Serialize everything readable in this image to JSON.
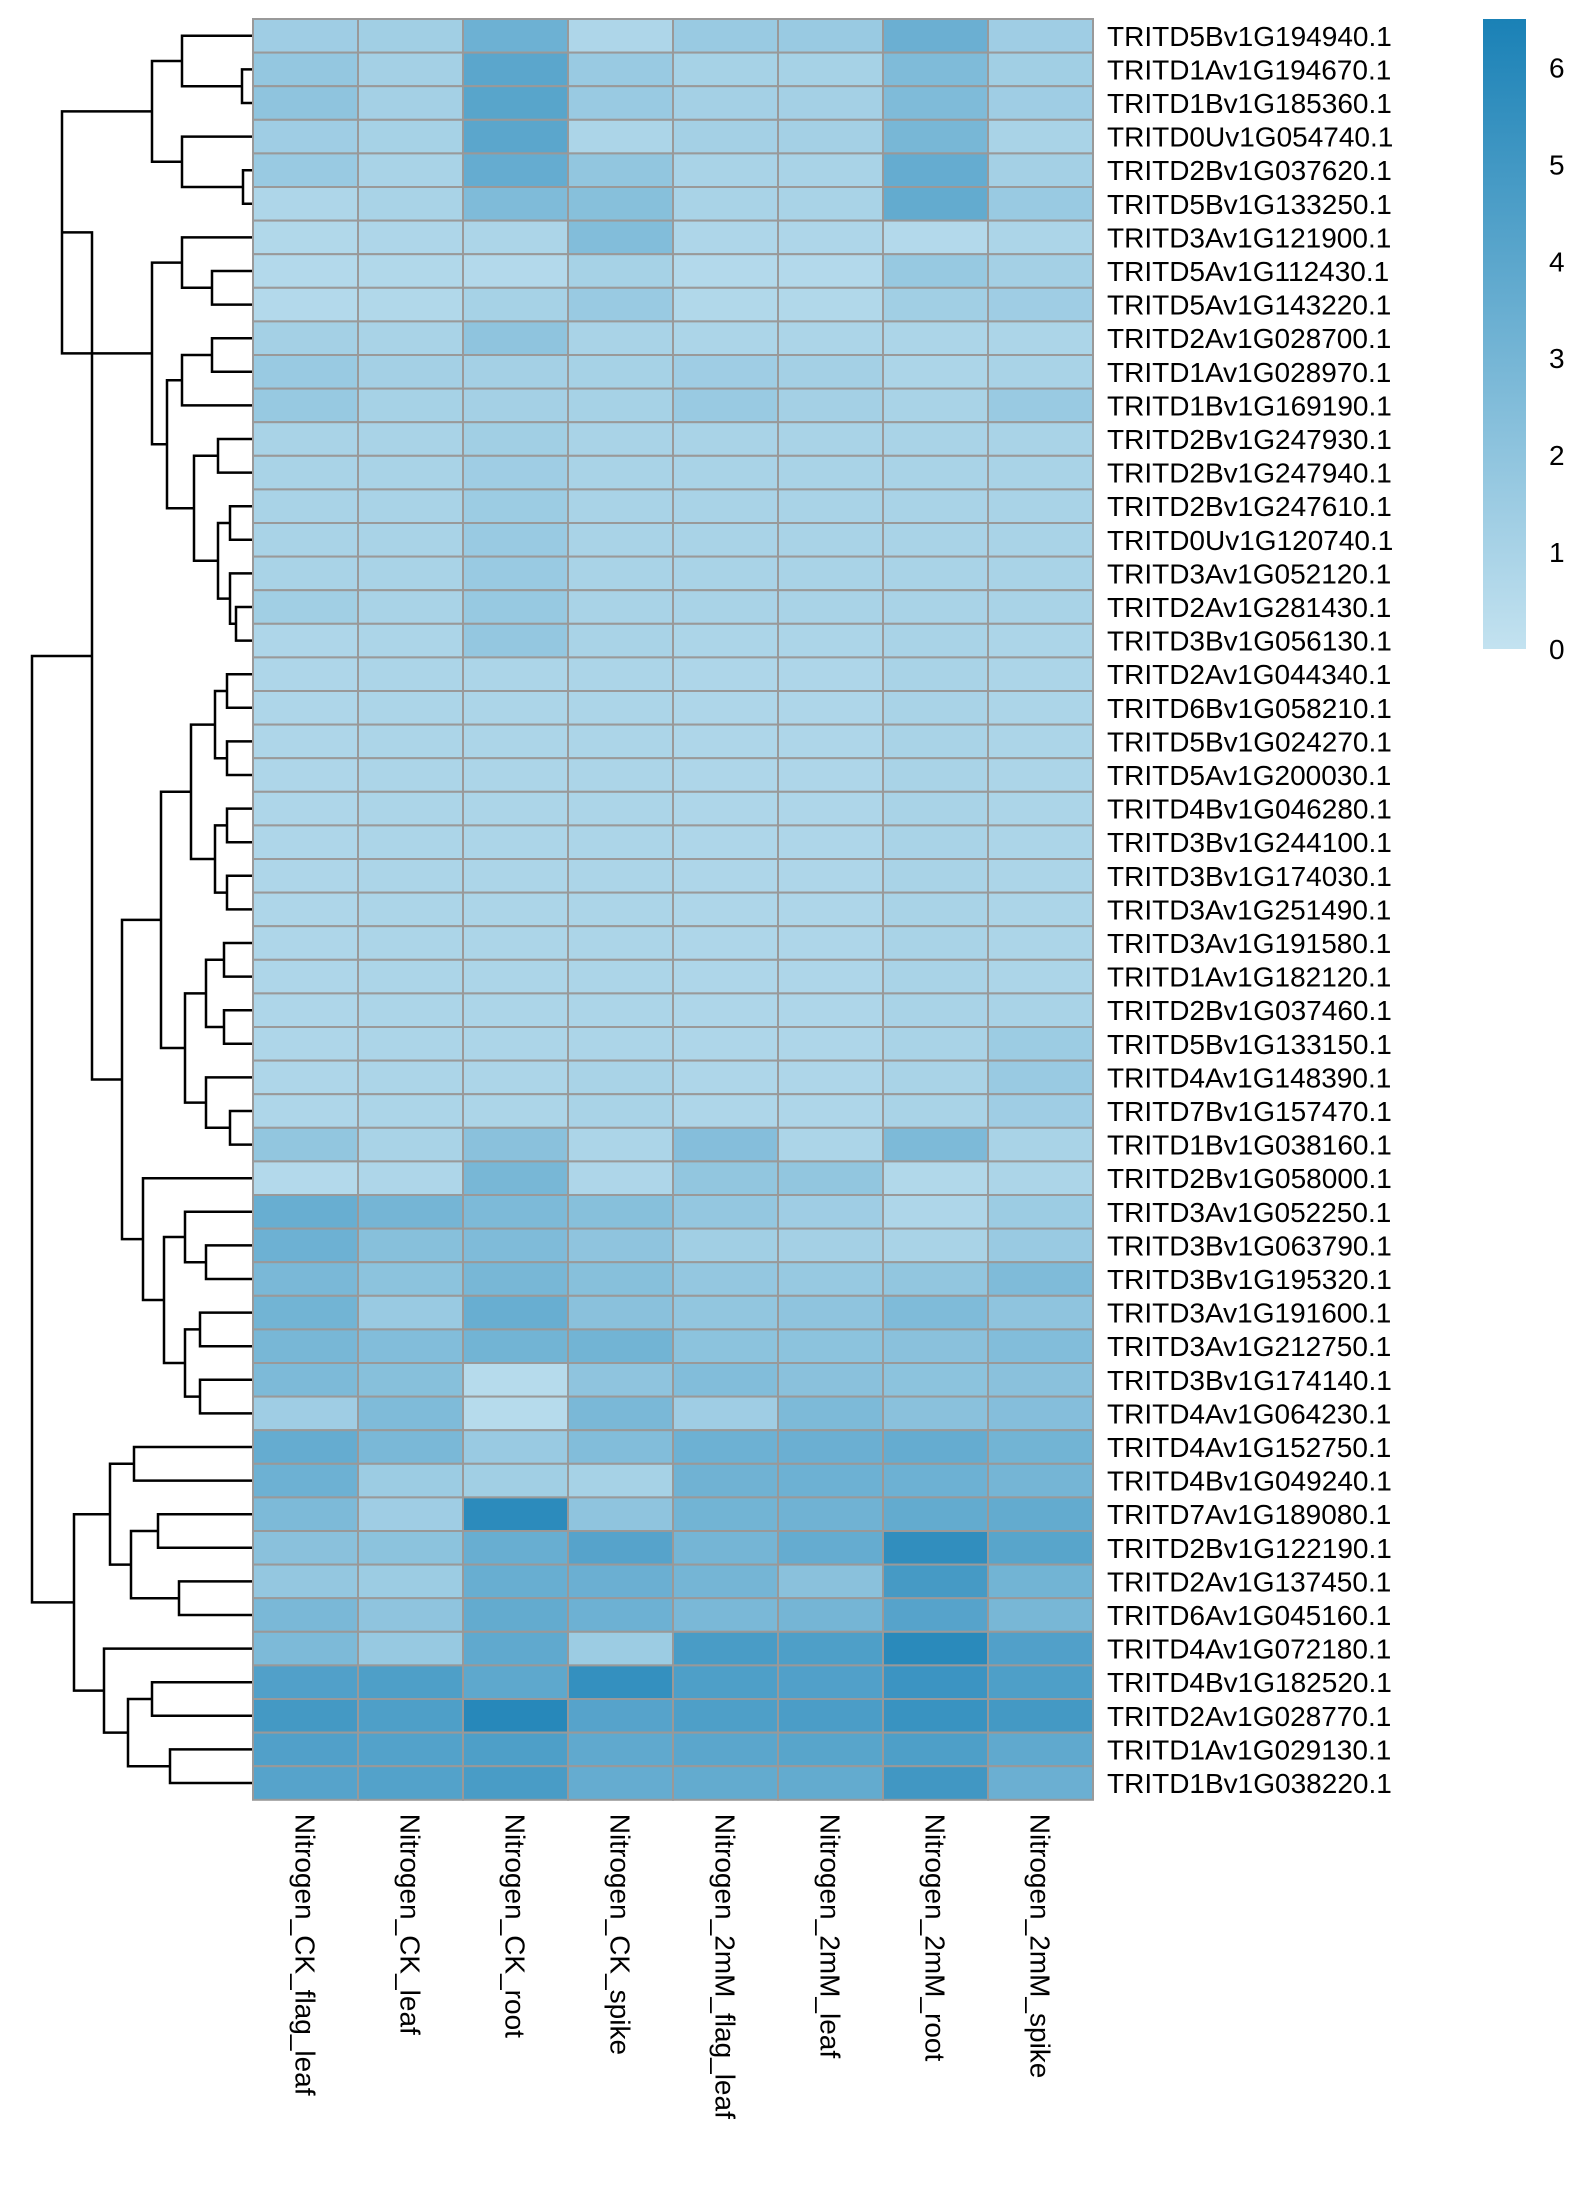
{
  "chart_data": {
    "type": "heatmap",
    "title": "",
    "columns": [
      "Nitrogen_CK_flag_leaf",
      "Nitrogen_CK_leaf",
      "Nitrogen_CK_root",
      "Nitrogen_CK_spike",
      "Nitrogen_2mM_flag_leaf",
      "Nitrogen_2mM_leaf",
      "Nitrogen_2mM_root",
      "Nitrogen_2mM_spike"
    ],
    "rows": [
      "TRITD5Bv1G194940.1",
      "TRITD1Av1G194670.1",
      "TRITD1Bv1G185360.1",
      "TRITD0Uv1G054740.1",
      "TRITD2Bv1G037620.1",
      "TRITD5Bv1G133250.1",
      "TRITD3Av1G121900.1",
      "TRITD5Av1G112430.1",
      "TRITD5Av1G143220.1",
      "TRITD2Av1G028700.1",
      "TRITD1Av1G028970.1",
      "TRITD1Bv1G169190.1",
      "TRITD2Bv1G247930.1",
      "TRITD2Bv1G247940.1",
      "TRITD2Bv1G247610.1",
      "TRITD0Uv1G120740.1",
      "TRITD3Av1G052120.1",
      "TRITD2Av1G281430.1",
      "TRITD3Bv1G056130.1",
      "TRITD2Av1G044340.1",
      "TRITD6Bv1G058210.1",
      "TRITD5Bv1G024270.1",
      "TRITD5Av1G200030.1",
      "TRITD4Bv1G046280.1",
      "TRITD3Bv1G244100.1",
      "TRITD3Bv1G174030.1",
      "TRITD3Av1G251490.1",
      "TRITD3Av1G191580.1",
      "TRITD1Av1G182120.1",
      "TRITD2Bv1G037460.1",
      "TRITD5Bv1G133150.1",
      "TRITD4Av1G148390.1",
      "TRITD7Bv1G157470.1",
      "TRITD1Bv1G038160.1",
      "TRITD2Bv1G058000.1",
      "TRITD3Av1G052250.1",
      "TRITD3Bv1G063790.1",
      "TRITD3Bv1G195320.1",
      "TRITD3Av1G191600.1",
      "TRITD3Av1G212750.1",
      "TRITD3Bv1G174140.1",
      "TRITD4Av1G064230.1",
      "TRITD4Av1G152750.1",
      "TRITD4Bv1G049240.1",
      "TRITD7Av1G189080.1",
      "TRITD2Bv1G122190.1",
      "TRITD2Av1G137450.1",
      "TRITD6Av1G045160.1",
      "TRITD4Av1G072180.1",
      "TRITD4Bv1G182520.1",
      "TRITD2Av1G028770.1",
      "TRITD1Av1G029130.1",
      "TRITD1Bv1G038220.1"
    ],
    "values": [
      [
        1.4,
        1.3,
        3.3,
        0.8,
        1.6,
        1.6,
        3.4,
        1.4
      ],
      [
        1.8,
        1.2,
        4.0,
        1.6,
        1.1,
        1.1,
        2.6,
        1.3
      ],
      [
        2.0,
        1.2,
        4.1,
        1.6,
        1.2,
        1.2,
        2.6,
        1.4
      ],
      [
        1.4,
        1.1,
        4.0,
        0.9,
        1.2,
        1.2,
        2.9,
        1.0
      ],
      [
        1.6,
        1.0,
        3.6,
        1.9,
        1.0,
        1.0,
        3.6,
        1.2
      ],
      [
        0.8,
        1.0,
        2.6,
        2.3,
        1.0,
        1.0,
        3.7,
        1.6
      ],
      [
        0.7,
        0.8,
        0.9,
        2.5,
        0.8,
        0.8,
        0.6,
        0.9
      ],
      [
        0.6,
        0.7,
        0.6,
        1.1,
        0.6,
        0.6,
        1.7,
        1.2
      ],
      [
        0.6,
        0.7,
        1.1,
        1.6,
        0.7,
        0.7,
        1.3,
        1.4
      ],
      [
        1.2,
        1.0,
        2.0,
        1.0,
        0.9,
        0.9,
        0.9,
        0.9
      ],
      [
        1.6,
        1.2,
        1.2,
        1.1,
        1.4,
        1.2,
        0.9,
        1.0
      ],
      [
        1.7,
        1.1,
        1.2,
        1.1,
        1.6,
        1.2,
        1.0,
        1.6
      ],
      [
        1.0,
        1.0,
        1.3,
        1.0,
        1.0,
        1.0,
        1.0,
        1.0
      ],
      [
        1.0,
        1.0,
        1.4,
        1.0,
        1.0,
        1.0,
        1.0,
        1.0
      ],
      [
        1.0,
        1.0,
        1.5,
        1.0,
        1.0,
        1.0,
        1.0,
        1.0
      ],
      [
        1.0,
        1.0,
        1.6,
        1.0,
        1.0,
        1.0,
        1.0,
        1.0
      ],
      [
        1.0,
        1.0,
        1.6,
        1.0,
        1.0,
        1.0,
        1.0,
        1.0
      ],
      [
        1.3,
        1.0,
        1.7,
        1.0,
        1.0,
        1.0,
        1.0,
        1.0
      ],
      [
        0.8,
        0.9,
        1.8,
        1.0,
        0.9,
        0.9,
        1.0,
        0.9
      ],
      [
        0.8,
        0.9,
        0.9,
        0.9,
        0.8,
        0.8,
        1.0,
        0.9
      ],
      [
        0.8,
        0.9,
        0.9,
        0.9,
        0.8,
        0.8,
        1.0,
        0.9
      ],
      [
        0.8,
        0.9,
        0.9,
        0.9,
        0.8,
        0.8,
        1.0,
        0.9
      ],
      [
        0.8,
        0.9,
        0.9,
        0.9,
        0.8,
        0.8,
        1.0,
        0.9
      ],
      [
        0.8,
        0.9,
        0.9,
        0.9,
        0.8,
        0.8,
        1.0,
        0.9
      ],
      [
        0.8,
        0.9,
        0.9,
        0.9,
        0.8,
        0.8,
        1.0,
        0.9
      ],
      [
        0.8,
        0.9,
        0.9,
        0.9,
        0.8,
        0.8,
        1.0,
        0.9
      ],
      [
        0.8,
        0.9,
        0.9,
        0.9,
        0.8,
        0.8,
        1.0,
        0.9
      ],
      [
        0.8,
        0.9,
        0.9,
        0.9,
        0.8,
        0.8,
        1.0,
        0.9
      ],
      [
        0.8,
        0.9,
        0.9,
        0.9,
        0.8,
        0.8,
        1.0,
        0.9
      ],
      [
        0.8,
        0.9,
        0.9,
        0.9,
        0.8,
        0.8,
        1.0,
        1.0
      ],
      [
        0.8,
        0.9,
        0.9,
        0.9,
        0.8,
        0.8,
        1.0,
        1.5
      ],
      [
        0.8,
        0.9,
        0.9,
        1.0,
        0.8,
        0.8,
        1.0,
        1.6
      ],
      [
        0.8,
        0.9,
        0.9,
        1.0,
        0.8,
        0.8,
        1.0,
        1.4
      ],
      [
        1.9,
        1.0,
        2.2,
        0.9,
        2.4,
        0.9,
        2.7,
        1.0
      ],
      [
        0.6,
        0.8,
        2.9,
        0.8,
        1.9,
        1.9,
        0.7,
        0.9
      ],
      [
        3.5,
        3.0,
        2.7,
        2.3,
        1.8,
        1.4,
        0.8,
        1.5
      ],
      [
        3.3,
        2.3,
        2.6,
        2.0,
        1.3,
        1.2,
        1.0,
        1.6
      ],
      [
        2.8,
        2.1,
        2.9,
        2.3,
        1.8,
        1.7,
        1.9,
        2.6
      ],
      [
        3.1,
        1.6,
        3.5,
        2.2,
        1.9,
        2.0,
        2.6,
        2.0
      ],
      [
        2.9,
        2.5,
        3.1,
        3.1,
        2.1,
        2.1,
        2.2,
        2.5
      ],
      [
        2.7,
        2.3,
        0.5,
        2.0,
        2.5,
        2.2,
        2.1,
        2.2
      ],
      [
        1.4,
        2.6,
        0.5,
        2.8,
        1.4,
        2.7,
        2.2,
        2.4
      ],
      [
        3.6,
        2.8,
        1.6,
        2.5,
        3.3,
        3.4,
        3.6,
        3.1
      ],
      [
        3.3,
        1.5,
        1.3,
        1.1,
        3.2,
        3.3,
        3.3,
        3.0
      ],
      [
        2.7,
        1.4,
        5.8,
        2.0,
        3.1,
        3.2,
        3.7,
        3.7
      ],
      [
        2.2,
        2.1,
        3.5,
        4.2,
        3.0,
        3.6,
        5.6,
        4.1
      ],
      [
        1.8,
        1.5,
        3.5,
        3.4,
        3.0,
        2.2,
        4.8,
        3.1
      ],
      [
        2.8,
        2.0,
        3.7,
        3.3,
        2.8,
        3.0,
        4.2,
        2.9
      ],
      [
        2.7,
        1.7,
        3.8,
        1.5,
        4.7,
        4.5,
        5.9,
        4.4
      ],
      [
        4.4,
        4.5,
        3.9,
        5.5,
        4.5,
        4.4,
        5.2,
        4.5
      ],
      [
        4.9,
        4.5,
        6.0,
        4.2,
        4.5,
        4.6,
        5.3,
        4.9
      ],
      [
        4.4,
        4.3,
        4.5,
        3.8,
        4.0,
        4.1,
        4.5,
        3.8
      ],
      [
        4.2,
        4.3,
        4.7,
        3.6,
        3.7,
        3.7,
        5.0,
        3.4
      ]
    ],
    "scale": {
      "min": 0,
      "max": 6.5,
      "ticks": [
        "0",
        "1",
        "2",
        "3",
        "4",
        "5",
        "6"
      ],
      "low_color": "#c3e2f0",
      "high_color": "#1a81b6"
    },
    "cell_border_color": "#999999",
    "dendrogram_color": "#000000",
    "legend_position": "top-right"
  }
}
